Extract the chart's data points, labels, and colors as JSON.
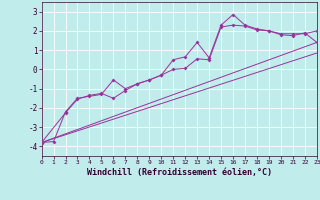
{
  "bg_color": "#c0ecec",
  "line_color": "#993399",
  "xlabel": "Windchill (Refroidissement éolien,°C)",
  "xlim": [
    0,
    23
  ],
  "ylim": [
    -4.5,
    3.5
  ],
  "yticks": [
    -4,
    -3,
    -2,
    -1,
    0,
    1,
    2,
    3
  ],
  "xticks": [
    0,
    1,
    2,
    3,
    4,
    5,
    6,
    7,
    8,
    9,
    10,
    11,
    12,
    13,
    14,
    15,
    16,
    17,
    18,
    19,
    20,
    21,
    22,
    23
  ],
  "zigzag1_x": [
    0,
    1,
    2,
    3,
    4,
    5,
    6,
    7,
    8,
    9,
    10,
    11,
    12,
    13,
    14,
    15,
    16,
    17,
    18,
    19,
    20,
    21,
    22,
    23
  ],
  "zigzag1_y": [
    -3.8,
    -3.75,
    -2.2,
    -1.5,
    -1.4,
    -1.3,
    -0.55,
    -1.0,
    -0.75,
    -0.55,
    -0.3,
    0.5,
    0.65,
    1.4,
    0.6,
    2.3,
    2.85,
    2.3,
    2.1,
    2.0,
    1.85,
    1.85,
    1.85,
    2.0
  ],
  "zigzag2_x": [
    0,
    2,
    3,
    4,
    5,
    6,
    7,
    8,
    9,
    10,
    11,
    12,
    13,
    14,
    15,
    16,
    17,
    18,
    19,
    20,
    21,
    22,
    23
  ],
  "zigzag2_y": [
    -3.8,
    -2.25,
    -1.55,
    -1.35,
    -1.25,
    -1.5,
    -1.1,
    -0.75,
    -0.55,
    -0.3,
    0.0,
    0.05,
    0.55,
    0.5,
    2.2,
    2.3,
    2.25,
    2.05,
    2.0,
    1.8,
    1.75,
    1.9,
    1.4
  ],
  "line1_y_end": 1.4,
  "line2_y_end": 0.85
}
